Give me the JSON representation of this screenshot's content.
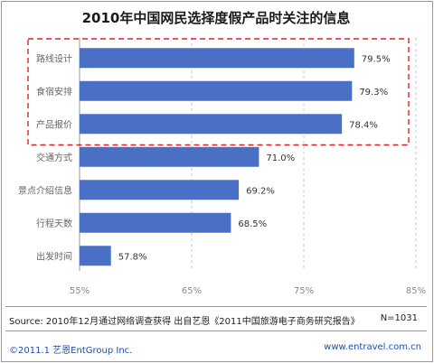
{
  "chart_data": {
    "type": "bar",
    "orientation": "horizontal",
    "title": "2010年中国网民选择度假产品时关注的信息",
    "categories": [
      "路线设计",
      "食宿安排",
      "产品报价",
      "交通方式",
      "景点介绍信息",
      "行程天数",
      "出发时间"
    ],
    "values": [
      79.5,
      79.3,
      78.4,
      71.0,
      69.2,
      68.5,
      57.8
    ],
    "value_labels": [
      "79.5%",
      "79.3%",
      "78.4%",
      "71.0%",
      "69.2%",
      "68.5%",
      "57.8%"
    ],
    "xlim": [
      55,
      85
    ],
    "xticks": [
      55,
      65,
      75,
      85
    ],
    "xtick_labels": [
      "55%",
      "65%",
      "75%",
      "85%"
    ],
    "grid": "vertical dashed",
    "bar_color": "#4a70c6",
    "highlight": {
      "categories": [
        "路线设计",
        "食宿安排",
        "产品报价"
      ],
      "color": "#e02020",
      "style": "dashed box"
    }
  },
  "source": {
    "text": "Source:  2010年12月通过网络调查获得  出自艺恩《2011中国旅游电子商务研究报告》",
    "n": "N=1031"
  },
  "footer": {
    "left": "©2011.1 艺恩EntGroup Inc.",
    "right": "www.entravel.com.cn"
  },
  "colors": {
    "axis_text": "#333333",
    "label_text": "#666666",
    "footer_blue": "#1f4ea8"
  }
}
